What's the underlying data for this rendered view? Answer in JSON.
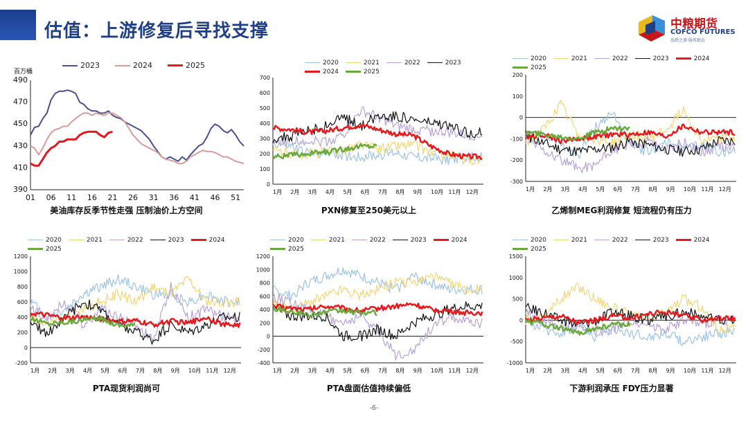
{
  "page": {
    "title": "估值：上游修复后寻找支撑",
    "page_number": "-6-"
  },
  "logo": {
    "cn": "中粮期货",
    "en": "COFCO FUTURES",
    "sub": "品质之源 服务致远",
    "colors": [
      "#e8b820",
      "#c8161d",
      "#1f3f86",
      "#3a8fd6"
    ]
  },
  "colors": {
    "2020": "#9cc3e6",
    "2021": "#f4d675",
    "2022": "#b7a1d6",
    "2023": "#111111",
    "2024": "#e8191c",
    "2025": "#6aaa3d"
  },
  "chart_data": [
    {
      "id": "crude",
      "type": "line",
      "caption": "美油库存反季节性走强 压制油价上方空间",
      "unit": "百万桶",
      "legend_position": "top",
      "ylim": [
        390,
        490
      ],
      "yticks": [
        390,
        410,
        430,
        450,
        470,
        490
      ],
      "xticks": [
        "01",
        "06",
        "11",
        "16",
        "21",
        "26",
        "31",
        "36",
        "41",
        "46",
        "51"
      ],
      "xlim": [
        1,
        53
      ],
      "series": [
        {
          "name": "2023",
          "color": "#4a4f8c",
          "width": 2,
          "x": [
            1,
            2,
            3,
            4,
            5,
            6,
            7,
            8,
            9,
            10,
            11,
            12,
            13,
            14,
            15,
            16,
            17,
            18,
            19,
            20,
            21,
            22,
            23,
            24,
            25,
            26,
            27,
            28,
            29,
            30,
            31,
            32,
            33,
            34,
            35,
            36,
            37,
            38,
            39,
            40,
            41,
            42,
            43,
            44,
            45,
            46,
            47,
            48,
            49,
            50,
            51,
            52,
            53
          ],
          "values": [
            440,
            447,
            448,
            455,
            460,
            472,
            478,
            480,
            480,
            481,
            480,
            478,
            470,
            468,
            464,
            462,
            462,
            460,
            460,
            462,
            458,
            456,
            455,
            452,
            450,
            448,
            446,
            444,
            440,
            436,
            430,
            425,
            420,
            418,
            420,
            418,
            416,
            420,
            417,
            422,
            426,
            430,
            432,
            438,
            446,
            450,
            448,
            444,
            442,
            445,
            440,
            434,
            430
          ]
        },
        {
          "name": "2024",
          "color": "#d99a9a",
          "width": 2,
          "x": [
            1,
            2,
            3,
            4,
            5,
            6,
            7,
            8,
            9,
            10,
            11,
            12,
            13,
            14,
            15,
            16,
            17,
            18,
            19,
            20,
            21,
            22,
            23,
            24,
            25,
            26,
            27,
            28,
            29,
            30,
            31,
            32,
            33,
            34,
            35,
            36,
            37,
            38,
            39,
            40,
            41,
            42,
            43,
            44,
            45,
            46,
            47,
            48,
            49,
            50,
            51,
            52,
            53
          ],
          "values": [
            430,
            428,
            422,
            428,
            436,
            442,
            445,
            446,
            448,
            448,
            452,
            455,
            458,
            460,
            460,
            458,
            460,
            459,
            458,
            460,
            460,
            458,
            456,
            452,
            446,
            440,
            436,
            432,
            430,
            428,
            426,
            424,
            420,
            418,
            417,
            416,
            414,
            414,
            416,
            420,
            422,
            424,
            426,
            425,
            425,
            424,
            422,
            420,
            420,
            418,
            416,
            415,
            414
          ]
        },
        {
          "name": "2025",
          "color": "#e3171c",
          "width": 3,
          "x": [
            1,
            2,
            3,
            4,
            5,
            6,
            7,
            8,
            9,
            10,
            11,
            12,
            13,
            14,
            15,
            16,
            17,
            18,
            19,
            20,
            21
          ],
          "values": [
            414,
            412,
            412,
            418,
            424,
            428,
            430,
            434,
            434,
            436,
            436,
            436,
            440,
            442,
            443,
            443,
            443,
            440,
            438,
            442,
            443
          ]
        }
      ]
    },
    {
      "id": "pxn",
      "type": "line",
      "caption": "PXN修复至250美元以上",
      "legend_position": "top",
      "ylim": [
        0,
        700
      ],
      "yticks": [
        0,
        100,
        200,
        300,
        400,
        500,
        600,
        700
      ],
      "xticks": [
        "1月",
        "2月",
        "3月",
        "4月",
        "5月",
        "6月",
        "7月",
        "8月",
        "9月",
        "10月",
        "11月",
        "12月"
      ],
      "series": [
        {
          "name": "2020",
          "values": [
            270,
            250,
            200,
            210,
            190,
            180,
            190,
            210,
            180,
            170,
            160,
            180
          ]
        },
        {
          "name": "2021",
          "values": [
            220,
            200,
            200,
            210,
            220,
            260,
            230,
            250,
            260,
            210,
            190,
            160
          ]
        },
        {
          "name": "2022",
          "values": [
            270,
            280,
            290,
            280,
            320,
            480,
            440,
            380,
            360,
            350,
            340,
            320
          ]
        },
        {
          "name": "2023",
          "values": [
            300,
            310,
            350,
            380,
            440,
            380,
            450,
            450,
            420,
            400,
            380,
            340
          ]
        },
        {
          "name": "2024",
          "values": [
            370,
            360,
            340,
            350,
            370,
            390,
            360,
            330,
            320,
            250,
            200,
            180
          ]
        },
        {
          "name": "2025",
          "values": [
            180,
            190,
            200,
            210,
            230,
            250
          ]
        }
      ]
    },
    {
      "id": "meg",
      "type": "line",
      "caption": "乙烯制MEG利润修复 短流程仍有压力",
      "legend_position": "top",
      "ylim": [
        -300,
        200
      ],
      "yticks": [
        -300,
        -200,
        -100,
        0,
        100,
        200
      ],
      "xticks": [
        "1月",
        "2月",
        "3月",
        "4月",
        "5月",
        "6月",
        "7月",
        "8月",
        "9月",
        "10月",
        "11月",
        "12月"
      ],
      "series": [
        {
          "name": "2020",
          "values": [
            -100,
            -80,
            -120,
            -180,
            -40,
            20,
            -130,
            -160,
            -120,
            -150,
            -130,
            -160
          ]
        },
        {
          "name": "2021",
          "values": [
            -120,
            -60,
            60,
            -80,
            -100,
            -120,
            -80,
            -100,
            -60,
            40,
            -110,
            -100
          ]
        },
        {
          "name": "2022",
          "values": [
            -100,
            -150,
            -200,
            -240,
            -220,
            -150,
            -130,
            -110,
            -150,
            -120,
            -160,
            -140
          ]
        },
        {
          "name": "2023",
          "values": [
            -80,
            -120,
            -150,
            -160,
            -150,
            -140,
            -110,
            -130,
            -150,
            -160,
            -150,
            -110
          ]
        },
        {
          "name": "2024",
          "values": [
            -90,
            -80,
            -110,
            -100,
            -90,
            -80,
            -80,
            -70,
            -90,
            -40,
            -70,
            -70
          ]
        },
        {
          "name": "2025",
          "values": [
            -70,
            -80,
            -90,
            -100,
            -70,
            -50
          ]
        }
      ]
    },
    {
      "id": "pta_spot",
      "type": "line",
      "caption": "PTA现货利润尚可",
      "legend_position": "top",
      "ylim": [
        -200,
        1200
      ],
      "yticks": [
        -200,
        0,
        200,
        400,
        600,
        800,
        1000,
        1200
      ],
      "xticks": [
        "1月",
        "2月",
        "3月",
        "4月",
        "5月",
        "6月",
        "7月",
        "8月",
        "9月",
        "10月",
        "11月",
        "12月"
      ],
      "series": [
        {
          "name": "2020",
          "values": [
            600,
            400,
            500,
            700,
            800,
            900,
            800,
            700,
            700,
            600,
            700,
            600
          ]
        },
        {
          "name": "2021",
          "values": [
            400,
            300,
            400,
            500,
            600,
            700,
            600,
            800,
            700,
            900,
            600,
            600
          ]
        },
        {
          "name": "2022",
          "values": [
            500,
            400,
            600,
            300,
            500,
            400,
            300,
            100,
            800,
            400,
            500,
            400
          ]
        },
        {
          "name": "2023",
          "values": [
            300,
            200,
            400,
            600,
            500,
            300,
            200,
            100,
            300,
            200,
            300,
            400
          ]
        },
        {
          "name": "2024",
          "values": [
            450,
            420,
            380,
            400,
            380,
            340,
            350,
            300,
            350,
            320,
            400,
            300
          ]
        },
        {
          "name": "2025",
          "values": [
            380,
            320,
            340,
            360,
            380,
            300
          ]
        }
      ]
    },
    {
      "id": "pta_disk",
      "type": "line",
      "caption": "PTA盘面估值持续偏低",
      "legend_position": "top",
      "ylim": [
        -400,
        1200
      ],
      "yticks": [
        -400,
        -200,
        0,
        200,
        400,
        600,
        800,
        1000,
        1200
      ],
      "xticks": [
        "1月",
        "2月",
        "3月",
        "4月",
        "5月",
        "6月",
        "7月",
        "8月",
        "9月",
        "10月",
        "11月",
        "12月"
      ],
      "series": [
        {
          "name": "2020",
          "values": [
            700,
            600,
            800,
            900,
            1000,
            900,
            800,
            700,
            900,
            800,
            700,
            700
          ]
        },
        {
          "name": "2021",
          "values": [
            500,
            400,
            500,
            600,
            700,
            600,
            700,
            800,
            800,
            900,
            800,
            700
          ]
        },
        {
          "name": "2022",
          "values": [
            600,
            500,
            400,
            300,
            200,
            300,
            100,
            -300,
            -200,
            100,
            300,
            200
          ]
        },
        {
          "name": "2023",
          "values": [
            400,
            300,
            300,
            300,
            0,
            0,
            100,
            0,
            200,
            300,
            400,
            450
          ]
        },
        {
          "name": "2024",
          "values": [
            450,
            420,
            400,
            450,
            420,
            380,
            420,
            450,
            480,
            400,
            380,
            350
          ]
        },
        {
          "name": "2025",
          "values": [
            420,
            380,
            320,
            360,
            380,
            350
          ]
        }
      ]
    },
    {
      "id": "downstream",
      "type": "line",
      "caption": "下游利润承压 FDY压力显著",
      "legend_position": "top",
      "ylim": [
        -1000,
        1500
      ],
      "yticks": [
        -1000,
        -500,
        0,
        500,
        1000,
        1500
      ],
      "xticks": [
        "1月",
        "2月",
        "3月",
        "4月",
        "5月",
        "6月",
        "7月",
        "8月",
        "9月",
        "10月",
        "11月",
        "12月"
      ],
      "series": [
        {
          "name": "2020",
          "values": [
            0,
            -200,
            -300,
            -100,
            -400,
            -200,
            -300,
            -400,
            -300,
            -500,
            -400,
            -300
          ]
        },
        {
          "name": "2021",
          "values": [
            0,
            100,
            500,
            800,
            500,
            300,
            100,
            0,
            200,
            500,
            300,
            -200
          ]
        },
        {
          "name": "2022",
          "values": [
            200,
            0,
            -200,
            -100,
            -300,
            -200,
            0,
            -100,
            -200,
            0,
            -100,
            0
          ]
        },
        {
          "name": "2023",
          "values": [
            300,
            200,
            0,
            -100,
            0,
            200,
            100,
            0,
            100,
            200,
            100,
            0
          ]
        },
        {
          "name": "2024",
          "values": [
            0,
            50,
            100,
            -50,
            0,
            100,
            50,
            150,
            200,
            100,
            0,
            50
          ]
        },
        {
          "name": "2025",
          "values": [
            0,
            -100,
            -200,
            -300,
            -200,
            -100
          ]
        }
      ]
    }
  ]
}
